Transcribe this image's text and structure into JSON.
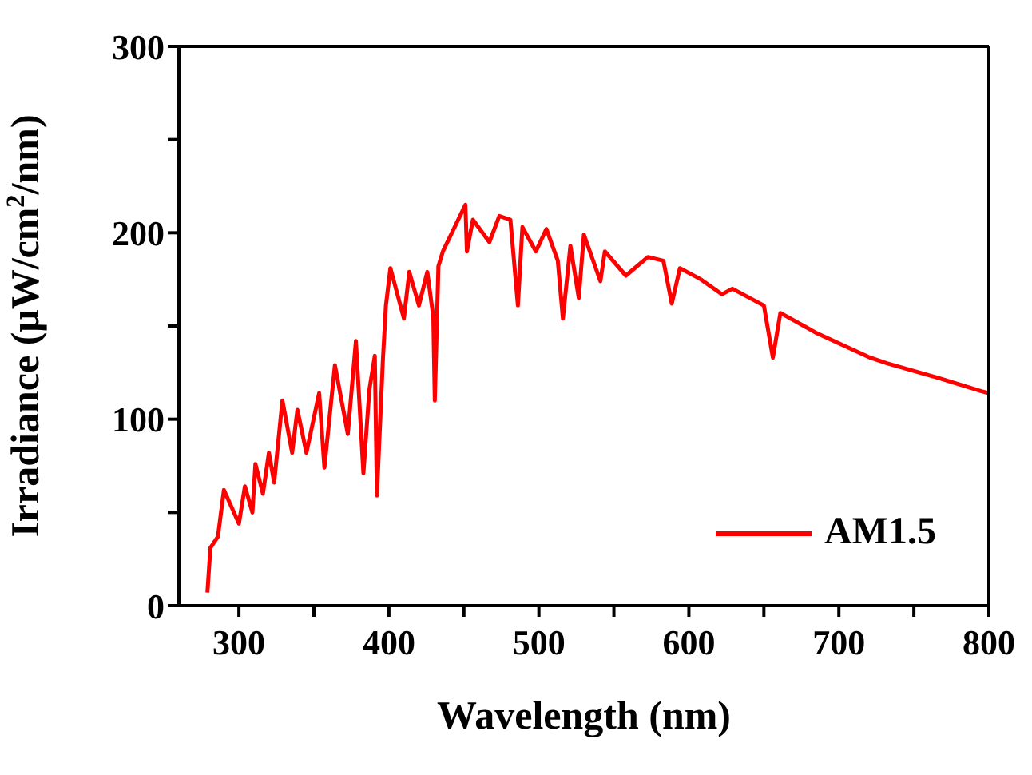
{
  "chart_data": {
    "type": "line",
    "xlabel": "Wavelength (nm)",
    "ylabel": "Irradiance (μW/cm$^{2}$/nm)",
    "xlim": [
      260,
      800
    ],
    "xticks": [
      300,
      {
        "value": 350,
        "label": null
      },
      400,
      {
        "value": 450,
        "label": null
      },
      500,
      {
        "value": 550,
        "label": null
      },
      600,
      {
        "value": 650,
        "label": null
      },
      700,
      {
        "value": 750,
        "label": null
      },
      800
    ],
    "ylim": [
      0,
      300
    ],
    "yticks": [
      0,
      {
        "value": 50,
        "label": null
      },
      100,
      {
        "value": 150,
        "label": null
      },
      200,
      {
        "value": 250,
        "label": null
      },
      300
    ],
    "grid": false,
    "legend": "bottom right",
    "marker": "none",
    "line_style": "solid",
    "series": [
      {
        "name": "AM1.5",
        "color": "#ff0000",
        "x": [
          279,
          281,
          286,
          290,
          300,
          304,
          309,
          311,
          316,
          320,
          323.5,
          329,
          335.5,
          339,
          345,
          353.5,
          357,
          364,
          372.6,
          378,
          383,
          387,
          390.6,
          392,
          396,
          398,
          401,
          410,
          413.6,
          420,
          425.6,
          429.6,
          430.6,
          433,
          436,
          451,
          452,
          456,
          467,
          473.6,
          481,
          486,
          489,
          498,
          505,
          512.6,
          516,
          521,
          526.6,
          530,
          541,
          544,
          558,
          572.7,
          583,
          588.6,
          594,
          608,
          622,
          629,
          650,
          656,
          661,
          685.6,
          721,
          732,
          767,
          795,
          800
        ],
        "values": [
          7,
          31,
          37,
          62,
          44,
          64,
          50,
          76,
          60,
          82,
          66,
          110,
          82,
          105,
          82,
          114,
          74,
          129,
          92,
          142,
          71,
          116,
          134,
          59,
          132,
          161,
          181,
          154,
          179,
          161,
          179,
          155,
          110,
          182,
          190,
          215,
          190,
          207,
          195,
          209,
          207,
          161,
          203,
          190,
          202,
          185,
          154,
          193,
          165,
          199,
          174,
          190,
          177,
          187,
          185,
          162,
          181,
          175,
          167,
          170,
          161,
          133,
          157,
          146,
          133,
          130,
          122,
          115,
          114
        ]
      }
    ]
  }
}
